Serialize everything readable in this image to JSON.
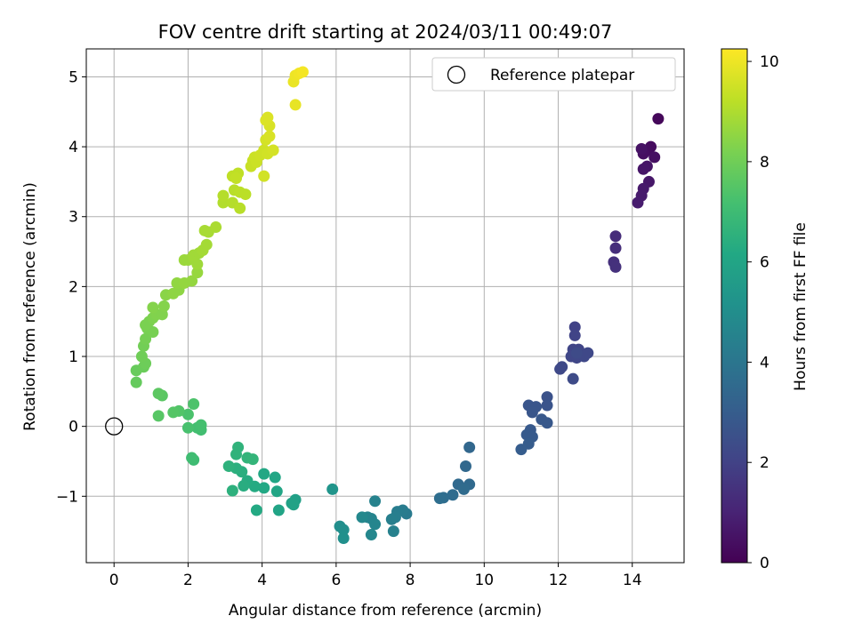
{
  "chart_data": {
    "type": "scatter",
    "title": "FOV centre drift starting at 2024/03/11 00:49:07",
    "xlabel": "Angular distance from reference (arcmin)",
    "ylabel": "Rotation from reference (arcmin)",
    "xlim": [
      -0.75,
      15.4
    ],
    "ylim": [
      -1.95,
      5.4
    ],
    "xticks": [
      0,
      2,
      4,
      6,
      8,
      10,
      12,
      14
    ],
    "yticks": [
      -1,
      0,
      1,
      2,
      3,
      4,
      5
    ],
    "grid": true,
    "legend": {
      "position": "upper-right",
      "label": "Reference platepar"
    },
    "reference_point": {
      "x": 0,
      "y": 0
    },
    "colorbar": {
      "label": "Hours from first FF file",
      "range": [
        0,
        10.25
      ],
      "ticks": [
        0,
        2,
        4,
        6,
        8,
        10
      ],
      "colormap": "viridis"
    },
    "points": [
      {
        "x": 14.7,
        "y": 4.4,
        "t": 0.2
      },
      {
        "x": 14.5,
        "y": 4.0,
        "t": 0.3
      },
      {
        "x": 14.4,
        "y": 3.95,
        "t": 0.35
      },
      {
        "x": 14.3,
        "y": 3.9,
        "t": 0.4
      },
      {
        "x": 14.6,
        "y": 3.85,
        "t": 0.45
      },
      {
        "x": 14.25,
        "y": 3.97,
        "t": 0.5
      },
      {
        "x": 14.4,
        "y": 3.72,
        "t": 0.55
      },
      {
        "x": 14.3,
        "y": 3.68,
        "t": 0.6
      },
      {
        "x": 14.45,
        "y": 3.5,
        "t": 0.65
      },
      {
        "x": 14.3,
        "y": 3.4,
        "t": 0.7
      },
      {
        "x": 14.25,
        "y": 3.3,
        "t": 0.75
      },
      {
        "x": 14.15,
        "y": 3.2,
        "t": 0.8
      },
      {
        "x": 13.55,
        "y": 2.72,
        "t": 1.3
      },
      {
        "x": 13.55,
        "y": 2.55,
        "t": 1.35
      },
      {
        "x": 13.5,
        "y": 2.35,
        "t": 1.4
      },
      {
        "x": 13.55,
        "y": 2.28,
        "t": 1.45
      },
      {
        "x": 12.45,
        "y": 1.42,
        "t": 2.0
      },
      {
        "x": 12.45,
        "y": 1.3,
        "t": 2.05
      },
      {
        "x": 12.4,
        "y": 1.1,
        "t": 2.1
      },
      {
        "x": 12.55,
        "y": 1.1,
        "t": 2.1
      },
      {
        "x": 12.35,
        "y": 1.0,
        "t": 2.15
      },
      {
        "x": 12.5,
        "y": 0.98,
        "t": 2.15
      },
      {
        "x": 12.7,
        "y": 1.0,
        "t": 2.2
      },
      {
        "x": 12.8,
        "y": 1.05,
        "t": 2.2
      },
      {
        "x": 12.1,
        "y": 0.85,
        "t": 2.25
      },
      {
        "x": 12.05,
        "y": 0.82,
        "t": 2.25
      },
      {
        "x": 12.4,
        "y": 0.68,
        "t": 2.3
      },
      {
        "x": 12.5,
        "y": 1.05,
        "t": 2.3
      },
      {
        "x": 11.7,
        "y": 0.42,
        "t": 2.6
      },
      {
        "x": 11.7,
        "y": 0.3,
        "t": 2.65
      },
      {
        "x": 11.2,
        "y": 0.3,
        "t": 2.7
      },
      {
        "x": 11.4,
        "y": 0.28,
        "t": 2.7
      },
      {
        "x": 11.3,
        "y": 0.2,
        "t": 2.75
      },
      {
        "x": 11.55,
        "y": 0.1,
        "t": 2.8
      },
      {
        "x": 11.7,
        "y": 0.05,
        "t": 2.8
      },
      {
        "x": 11.25,
        "y": -0.05,
        "t": 2.85
      },
      {
        "x": 11.15,
        "y": -0.12,
        "t": 2.9
      },
      {
        "x": 11.3,
        "y": -0.15,
        "t": 2.9
      },
      {
        "x": 11.2,
        "y": -0.25,
        "t": 2.95
      },
      {
        "x": 11.0,
        "y": -0.33,
        "t": 3.0
      },
      {
        "x": 9.6,
        "y": -0.3,
        "t": 3.4
      },
      {
        "x": 9.5,
        "y": -0.57,
        "t": 3.45
      },
      {
        "x": 9.3,
        "y": -0.83,
        "t": 3.5
      },
      {
        "x": 9.6,
        "y": -0.83,
        "t": 3.5
      },
      {
        "x": 9.45,
        "y": -0.9,
        "t": 3.55
      },
      {
        "x": 9.15,
        "y": -0.98,
        "t": 3.6
      },
      {
        "x": 8.9,
        "y": -1.02,
        "t": 3.65
      },
      {
        "x": 8.8,
        "y": -1.03,
        "t": 3.7
      },
      {
        "x": 7.9,
        "y": -1.25,
        "t": 4.2
      },
      {
        "x": 7.8,
        "y": -1.2,
        "t": 4.25
      },
      {
        "x": 7.65,
        "y": -1.22,
        "t": 4.3
      },
      {
        "x": 7.6,
        "y": -1.3,
        "t": 4.35
      },
      {
        "x": 7.5,
        "y": -1.33,
        "t": 4.4
      },
      {
        "x": 7.55,
        "y": -1.5,
        "t": 4.45
      },
      {
        "x": 7.05,
        "y": -1.07,
        "t": 4.5
      },
      {
        "x": 6.85,
        "y": -1.3,
        "t": 4.55
      },
      {
        "x": 6.95,
        "y": -1.32,
        "t": 4.6
      },
      {
        "x": 7.05,
        "y": -1.4,
        "t": 4.65
      },
      {
        "x": 6.95,
        "y": -1.55,
        "t": 4.7
      },
      {
        "x": 6.7,
        "y": -1.3,
        "t": 4.75
      },
      {
        "x": 6.1,
        "y": -1.43,
        "t": 5.0
      },
      {
        "x": 6.2,
        "y": -1.48,
        "t": 5.05
      },
      {
        "x": 6.2,
        "y": -1.6,
        "t": 5.1
      },
      {
        "x": 5.9,
        "y": -0.9,
        "t": 5.3
      },
      {
        "x": 4.9,
        "y": -1.05,
        "t": 5.8
      },
      {
        "x": 4.8,
        "y": -1.1,
        "t": 5.85
      },
      {
        "x": 4.85,
        "y": -1.12,
        "t": 5.9
      },
      {
        "x": 4.45,
        "y": -1.2,
        "t": 5.95
      },
      {
        "x": 4.4,
        "y": -0.93,
        "t": 6.0
      },
      {
        "x": 4.35,
        "y": -0.73,
        "t": 6.05
      },
      {
        "x": 4.05,
        "y": -0.68,
        "t": 6.1
      },
      {
        "x": 4.05,
        "y": -0.88,
        "t": 6.15
      },
      {
        "x": 3.85,
        "y": -1.2,
        "t": 6.2
      },
      {
        "x": 3.8,
        "y": -0.86,
        "t": 6.25
      },
      {
        "x": 3.6,
        "y": -0.78,
        "t": 6.3
      },
      {
        "x": 3.5,
        "y": -0.85,
        "t": 6.35
      },
      {
        "x": 3.45,
        "y": -0.65,
        "t": 6.4
      },
      {
        "x": 3.3,
        "y": -0.6,
        "t": 6.45
      },
      {
        "x": 3.2,
        "y": -0.92,
        "t": 6.5
      },
      {
        "x": 3.1,
        "y": -0.57,
        "t": 6.55
      },
      {
        "x": 3.3,
        "y": -0.4,
        "t": 6.6
      },
      {
        "x": 3.35,
        "y": -0.3,
        "t": 6.6
      },
      {
        "x": 3.6,
        "y": -0.45,
        "t": 6.65
      },
      {
        "x": 3.75,
        "y": -0.47,
        "t": 6.7
      },
      {
        "x": 2.15,
        "y": -0.48,
        "t": 7.0
      },
      {
        "x": 2.1,
        "y": -0.45,
        "t": 7.05
      },
      {
        "x": 2.35,
        "y": -0.05,
        "t": 7.1
      },
      {
        "x": 2.25,
        "y": -0.02,
        "t": 7.15
      },
      {
        "x": 2.35,
        "y": 0.02,
        "t": 7.2
      },
      {
        "x": 2.0,
        "y": -0.02,
        "t": 7.25
      },
      {
        "x": 2.0,
        "y": 0.17,
        "t": 7.3
      },
      {
        "x": 2.15,
        "y": 0.32,
        "t": 7.35
      },
      {
        "x": 1.75,
        "y": 0.22,
        "t": 7.45
      },
      {
        "x": 1.6,
        "y": 0.2,
        "t": 7.5
      },
      {
        "x": 1.2,
        "y": 0.15,
        "t": 7.55
      },
      {
        "x": 1.3,
        "y": 0.44,
        "t": 7.6
      },
      {
        "x": 1.2,
        "y": 0.47,
        "t": 7.65
      },
      {
        "x": 0.6,
        "y": 0.63,
        "t": 7.8
      },
      {
        "x": 0.6,
        "y": 0.8,
        "t": 7.85
      },
      {
        "x": 0.8,
        "y": 0.85,
        "t": 7.9
      },
      {
        "x": 0.85,
        "y": 0.9,
        "t": 7.95
      },
      {
        "x": 0.75,
        "y": 1.0,
        "t": 8.0
      },
      {
        "x": 0.8,
        "y": 1.15,
        "t": 8.05
      },
      {
        "x": 0.85,
        "y": 1.25,
        "t": 8.1
      },
      {
        "x": 1.05,
        "y": 1.35,
        "t": 8.15
      },
      {
        "x": 0.9,
        "y": 1.4,
        "t": 8.15
      },
      {
        "x": 0.85,
        "y": 1.45,
        "t": 8.2
      },
      {
        "x": 0.95,
        "y": 1.5,
        "t": 8.2
      },
      {
        "x": 1.05,
        "y": 1.55,
        "t": 8.25
      },
      {
        "x": 1.15,
        "y": 1.6,
        "t": 8.3
      },
      {
        "x": 1.3,
        "y": 1.6,
        "t": 8.3
      },
      {
        "x": 1.05,
        "y": 1.7,
        "t": 8.35
      },
      {
        "x": 1.35,
        "y": 1.72,
        "t": 8.35
      },
      {
        "x": 1.4,
        "y": 1.88,
        "t": 8.45
      },
      {
        "x": 1.6,
        "y": 1.9,
        "t": 8.5
      },
      {
        "x": 1.75,
        "y": 1.95,
        "t": 8.5
      },
      {
        "x": 1.7,
        "y": 2.05,
        "t": 8.55
      },
      {
        "x": 1.9,
        "y": 2.05,
        "t": 8.6
      },
      {
        "x": 2.1,
        "y": 2.08,
        "t": 8.6
      },
      {
        "x": 2.25,
        "y": 2.2,
        "t": 8.65
      },
      {
        "x": 1.9,
        "y": 2.38,
        "t": 8.7
      },
      {
        "x": 2.0,
        "y": 2.38,
        "t": 8.7
      },
      {
        "x": 2.15,
        "y": 2.4,
        "t": 8.75
      },
      {
        "x": 2.25,
        "y": 2.32,
        "t": 8.75
      },
      {
        "x": 2.15,
        "y": 2.45,
        "t": 8.8
      },
      {
        "x": 2.3,
        "y": 2.48,
        "t": 8.8
      },
      {
        "x": 2.4,
        "y": 2.52,
        "t": 8.85
      },
      {
        "x": 2.5,
        "y": 2.6,
        "t": 8.85
      },
      {
        "x": 2.45,
        "y": 2.8,
        "t": 8.9
      },
      {
        "x": 2.55,
        "y": 2.78,
        "t": 8.9
      },
      {
        "x": 2.75,
        "y": 2.85,
        "t": 8.95
      },
      {
        "x": 2.95,
        "y": 3.2,
        "t": 9.05
      },
      {
        "x": 2.95,
        "y": 3.3,
        "t": 9.1
      },
      {
        "x": 3.2,
        "y": 3.2,
        "t": 9.1
      },
      {
        "x": 3.4,
        "y": 3.12,
        "t": 9.15
      },
      {
        "x": 3.25,
        "y": 3.38,
        "t": 9.15
      },
      {
        "x": 3.4,
        "y": 3.35,
        "t": 9.2
      },
      {
        "x": 3.55,
        "y": 3.32,
        "t": 9.2
      },
      {
        "x": 3.2,
        "y": 3.58,
        "t": 9.25
      },
      {
        "x": 3.35,
        "y": 3.62,
        "t": 9.25
      },
      {
        "x": 3.3,
        "y": 3.55,
        "t": 9.3
      },
      {
        "x": 3.7,
        "y": 3.72,
        "t": 9.4
      },
      {
        "x": 3.75,
        "y": 3.8,
        "t": 9.4
      },
      {
        "x": 3.85,
        "y": 3.78,
        "t": 9.45
      },
      {
        "x": 3.8,
        "y": 3.85,
        "t": 9.45
      },
      {
        "x": 3.95,
        "y": 3.88,
        "t": 9.5
      },
      {
        "x": 4.05,
        "y": 3.95,
        "t": 9.5
      },
      {
        "x": 4.05,
        "y": 3.58,
        "t": 9.55
      },
      {
        "x": 4.15,
        "y": 3.9,
        "t": 9.55
      },
      {
        "x": 4.3,
        "y": 3.95,
        "t": 9.6
      },
      {
        "x": 4.1,
        "y": 4.1,
        "t": 9.6
      },
      {
        "x": 4.2,
        "y": 4.15,
        "t": 9.65
      },
      {
        "x": 4.2,
        "y": 4.3,
        "t": 9.65
      },
      {
        "x": 4.15,
        "y": 4.42,
        "t": 9.7
      },
      {
        "x": 4.1,
        "y": 4.38,
        "t": 9.7
      },
      {
        "x": 4.9,
        "y": 4.6,
        "t": 9.9
      },
      {
        "x": 4.85,
        "y": 4.93,
        "t": 9.95
      },
      {
        "x": 4.9,
        "y": 5.02,
        "t": 10.0
      },
      {
        "x": 5.0,
        "y": 5.05,
        "t": 10.05
      },
      {
        "x": 5.1,
        "y": 5.07,
        "t": 10.1
      }
    ]
  }
}
